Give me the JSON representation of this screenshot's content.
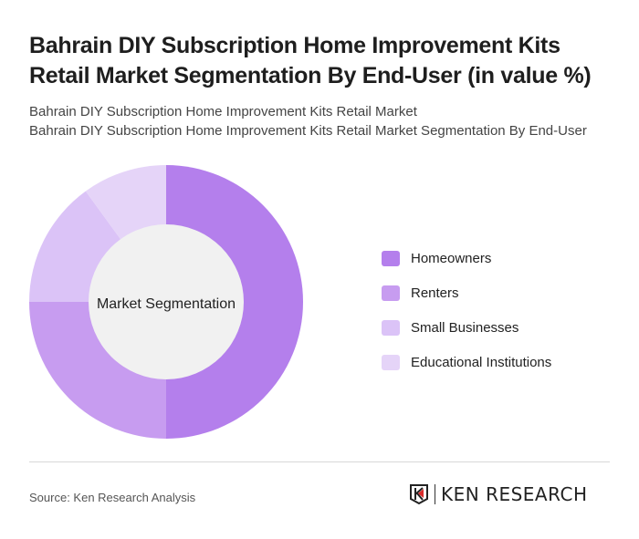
{
  "title": "Bahrain DIY Subscription Home Improvement Kits Retail Market Segmentation By End-User (in value %)",
  "subtitle_1": "Bahrain DIY Subscription Home Improvement Kits Retail Market",
  "subtitle_2": "Bahrain DIY Subscription Home Improvement Kits Retail Market Segmentation By End-User",
  "chart_data": {
    "type": "pie",
    "variant": "donut",
    "center_label": "Market Segmentation",
    "categories": [
      "Homeowners",
      "Renters",
      "Small Businesses",
      "Educational Institutions"
    ],
    "values": [
      50,
      25,
      15,
      10
    ],
    "colors": [
      "#b47fec",
      "#c79cf0",
      "#dbc3f7",
      "#e5d4f8"
    ],
    "legend_position": "right"
  },
  "source": "Source: Ken Research Analysis",
  "logo_text": "KEN RESEARCH"
}
